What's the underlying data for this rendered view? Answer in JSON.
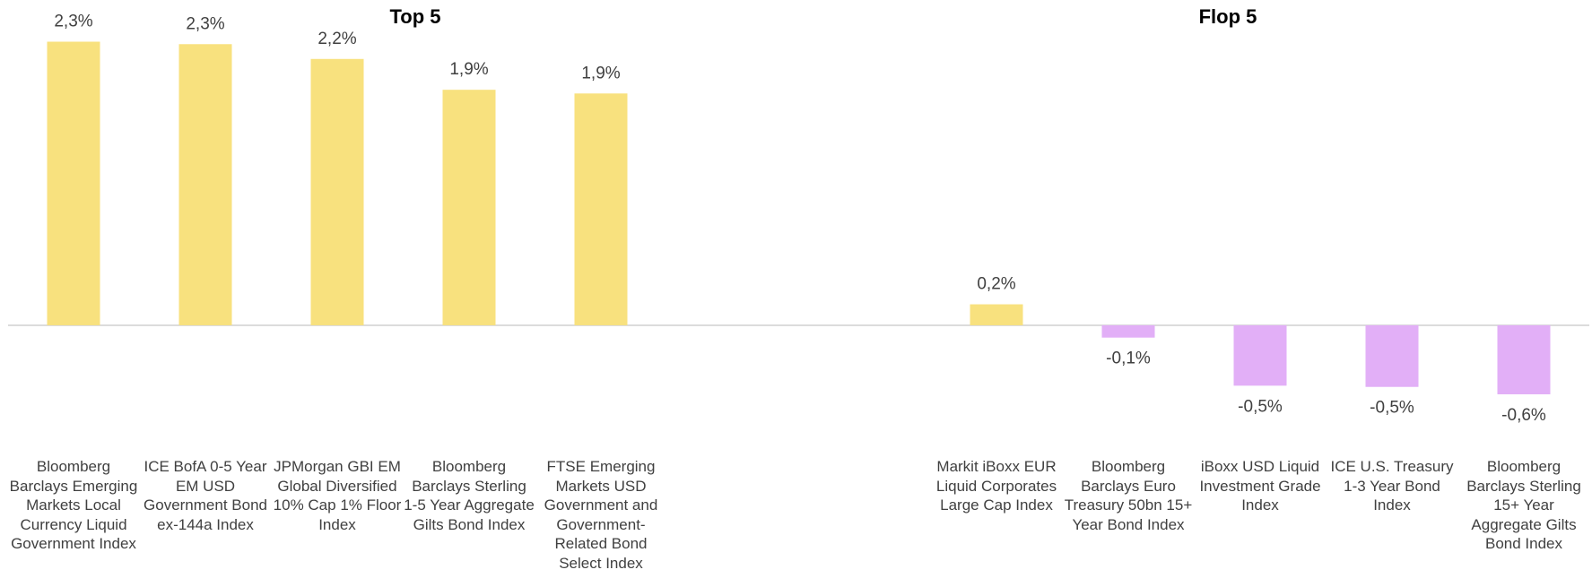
{
  "chart_data": [
    {
      "type": "bar",
      "title": "Top 5",
      "categories": [
        "Bloomberg Barclays Emerging Markets Local Currency Liquid Government Index",
        "ICE BofA 0-5 Year EM USD Government Bond ex-144a Index",
        "JPMorgan GBI EM Global Diversified 10% Cap 1% Floor Index",
        "Bloomberg Barclays Sterling 1-5 Year Aggregate Gilts Bond Index",
        "FTSE Emerging Markets USD Government and Government-Related Bond Select Index"
      ],
      "values": [
        2.3,
        2.28,
        2.16,
        1.91,
        1.88
      ],
      "value_labels": [
        "2,3%",
        "2,3%",
        "2,2%",
        "1,9%",
        "1,9%"
      ],
      "color": "#f8e17e",
      "negative_color": "#e2aff7",
      "ylim": [
        -0.8,
        2.5
      ]
    },
    {
      "type": "bar",
      "title": "Flop 5",
      "categories": [
        "Markit iBoxx EUR Liquid Corporates Large Cap Index",
        "Bloomberg Barclays Euro Treasury 50bn 15+ Year Bond Index",
        "iBoxx USD Liquid Investment Grade Index",
        "ICE U.S. Treasury 1-3 Year Bond Index",
        "Bloomberg Barclays Sterling 15+ Year Aggregate Gilts Bond Index"
      ],
      "values": [
        0.17,
        -0.1,
        -0.49,
        -0.5,
        -0.56
      ],
      "value_labels": [
        "0,2%",
        "-0,1%",
        "-0,5%",
        "-0,5%",
        "-0,6%"
      ],
      "color": "#f8e17e",
      "negative_color": "#e2aff7",
      "ylim": [
        -0.8,
        2.5
      ]
    }
  ]
}
